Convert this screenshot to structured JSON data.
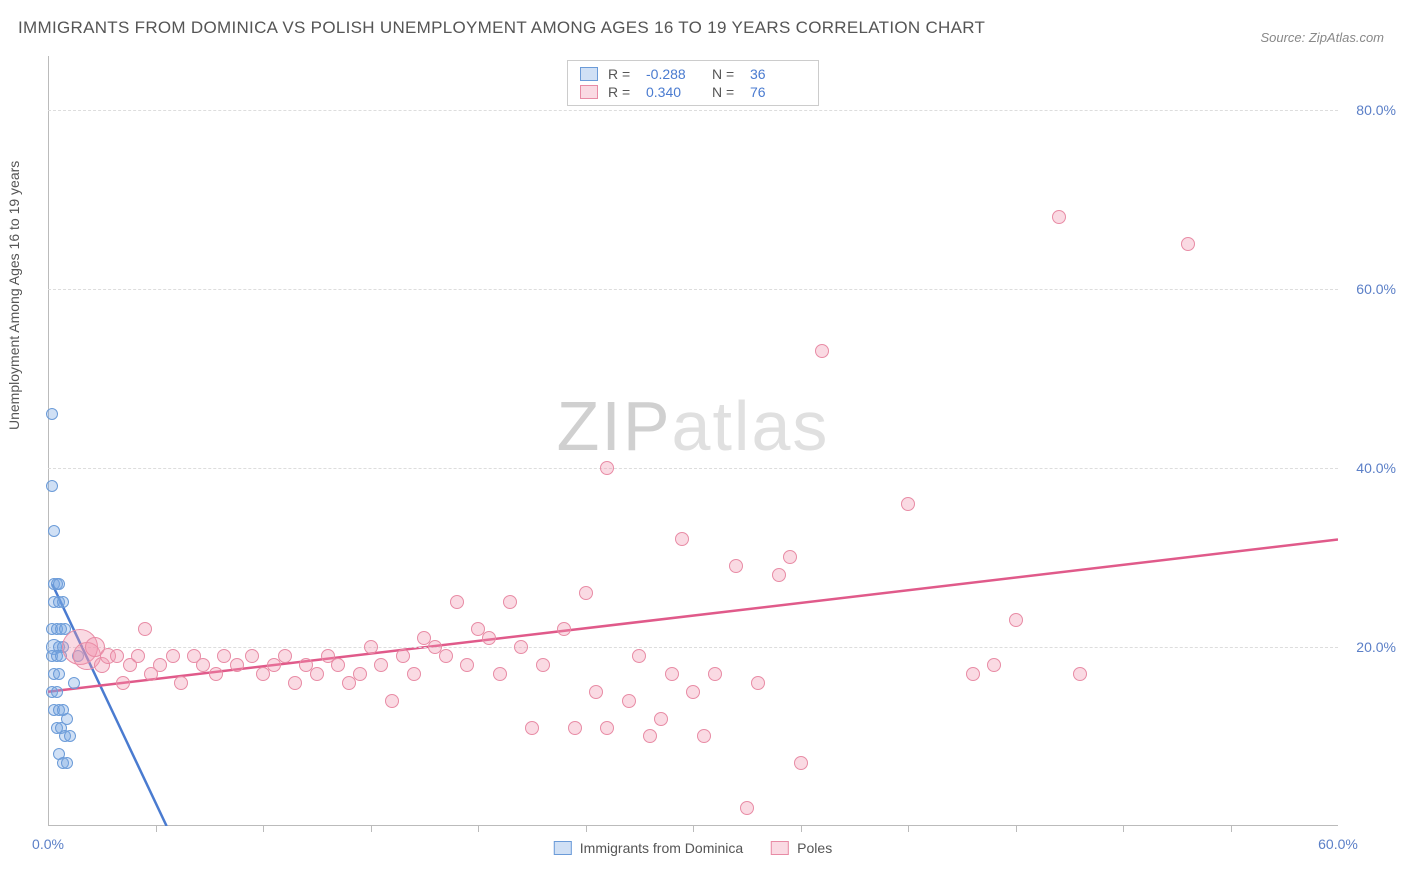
{
  "title": "IMMIGRANTS FROM DOMINICA VS POLISH UNEMPLOYMENT AMONG AGES 16 TO 19 YEARS CORRELATION CHART",
  "source": "Source: ZipAtlas.com",
  "y_axis_label": "Unemployment Among Ages 16 to 19 years",
  "watermark": {
    "part1": "ZIP",
    "part2": "atlas"
  },
  "chart": {
    "type": "scatter",
    "xlim": [
      0,
      60
    ],
    "ylim": [
      0,
      86
    ],
    "x_ticks_minor": [
      5,
      10,
      15,
      20,
      25,
      30,
      35,
      40,
      45,
      50,
      55
    ],
    "y_grid": [
      20,
      40,
      60,
      80
    ],
    "x_labels": [
      {
        "v": 0,
        "t": "0.0%"
      },
      {
        "v": 60,
        "t": "60.0%"
      }
    ],
    "y_labels": [
      {
        "v": 20,
        "t": "20.0%"
      },
      {
        "v": 40,
        "t": "40.0%"
      },
      {
        "v": 60,
        "t": "60.0%"
      },
      {
        "v": 80,
        "t": "80.0%"
      }
    ],
    "background_color": "#ffffff",
    "grid_color": "#dddddd"
  },
  "series": [
    {
      "key": "dominica",
      "label": "Immigrants from Dominica",
      "fill": "rgba(120,165,225,0.35)",
      "stroke": "#6b9bd8",
      "line_color": "#4a7bd0",
      "R": "-0.288",
      "N": "36",
      "trend": {
        "x1": 0.2,
        "y1": 27,
        "x2": 6.5,
        "y2": -5,
        "dashed_ext": true
      },
      "points": [
        {
          "x": 0.2,
          "y": 46,
          "r": 6
        },
        {
          "x": 0.2,
          "y": 38,
          "r": 6
        },
        {
          "x": 0.3,
          "y": 33,
          "r": 6
        },
        {
          "x": 0.3,
          "y": 27,
          "r": 6
        },
        {
          "x": 0.4,
          "y": 27,
          "r": 6
        },
        {
          "x": 0.5,
          "y": 27,
          "r": 6
        },
        {
          "x": 0.3,
          "y": 25,
          "r": 6
        },
        {
          "x": 0.5,
          "y": 25,
          "r": 6
        },
        {
          "x": 0.7,
          "y": 25,
          "r": 6
        },
        {
          "x": 0.2,
          "y": 22,
          "r": 6
        },
        {
          "x": 0.4,
          "y": 22,
          "r": 6
        },
        {
          "x": 0.6,
          "y": 22,
          "r": 6
        },
        {
          "x": 0.8,
          "y": 22,
          "r": 6
        },
        {
          "x": 0.3,
          "y": 20,
          "r": 8
        },
        {
          "x": 0.5,
          "y": 20,
          "r": 6
        },
        {
          "x": 0.7,
          "y": 20,
          "r": 6
        },
        {
          "x": 0.2,
          "y": 19,
          "r": 6
        },
        {
          "x": 0.4,
          "y": 19,
          "r": 6
        },
        {
          "x": 0.6,
          "y": 19,
          "r": 6
        },
        {
          "x": 0.3,
          "y": 17,
          "r": 6
        },
        {
          "x": 0.5,
          "y": 17,
          "r": 6
        },
        {
          "x": 0.2,
          "y": 15,
          "r": 6
        },
        {
          "x": 0.4,
          "y": 15,
          "r": 6
        },
        {
          "x": 0.3,
          "y": 13,
          "r": 6
        },
        {
          "x": 0.5,
          "y": 13,
          "r": 6
        },
        {
          "x": 0.7,
          "y": 13,
          "r": 6
        },
        {
          "x": 0.9,
          "y": 12,
          "r": 6
        },
        {
          "x": 0.4,
          "y": 11,
          "r": 6
        },
        {
          "x": 0.6,
          "y": 11,
          "r": 6
        },
        {
          "x": 0.8,
          "y": 10,
          "r": 6
        },
        {
          "x": 1.0,
          "y": 10,
          "r": 6
        },
        {
          "x": 0.5,
          "y": 8,
          "r": 6
        },
        {
          "x": 0.7,
          "y": 7,
          "r": 6
        },
        {
          "x": 0.9,
          "y": 7,
          "r": 6
        },
        {
          "x": 1.2,
          "y": 16,
          "r": 6
        },
        {
          "x": 1.4,
          "y": 19,
          "r": 6
        }
      ]
    },
    {
      "key": "poles",
      "label": "Poles",
      "fill": "rgba(240,150,175,0.35)",
      "stroke": "#e88ba5",
      "line_color": "#e05a8a",
      "R": "0.340",
      "N": "76",
      "trend": {
        "x1": 0,
        "y1": 15,
        "x2": 60,
        "y2": 32,
        "dashed_ext": false
      },
      "points": [
        {
          "x": 1.5,
          "y": 20,
          "r": 18
        },
        {
          "x": 1.8,
          "y": 19,
          "r": 14
        },
        {
          "x": 2.2,
          "y": 20,
          "r": 10
        },
        {
          "x": 2.5,
          "y": 18,
          "r": 8
        },
        {
          "x": 2.8,
          "y": 19,
          "r": 8
        },
        {
          "x": 3.2,
          "y": 19,
          "r": 7
        },
        {
          "x": 3.5,
          "y": 16,
          "r": 7
        },
        {
          "x": 3.8,
          "y": 18,
          "r": 7
        },
        {
          "x": 4.2,
          "y": 19,
          "r": 7
        },
        {
          "x": 4.5,
          "y": 22,
          "r": 7
        },
        {
          "x": 4.8,
          "y": 17,
          "r": 7
        },
        {
          "x": 5.2,
          "y": 18,
          "r": 7
        },
        {
          "x": 5.8,
          "y": 19,
          "r": 7
        },
        {
          "x": 6.2,
          "y": 16,
          "r": 7
        },
        {
          "x": 6.8,
          "y": 19,
          "r": 7
        },
        {
          "x": 7.2,
          "y": 18,
          "r": 7
        },
        {
          "x": 7.8,
          "y": 17,
          "r": 7
        },
        {
          "x": 8.2,
          "y": 19,
          "r": 7
        },
        {
          "x": 8.8,
          "y": 18,
          "r": 7
        },
        {
          "x": 9.5,
          "y": 19,
          "r": 7
        },
        {
          "x": 10,
          "y": 17,
          "r": 7
        },
        {
          "x": 10.5,
          "y": 18,
          "r": 7
        },
        {
          "x": 11,
          "y": 19,
          "r": 7
        },
        {
          "x": 11.5,
          "y": 16,
          "r": 7
        },
        {
          "x": 12,
          "y": 18,
          "r": 7
        },
        {
          "x": 12.5,
          "y": 17,
          "r": 7
        },
        {
          "x": 13,
          "y": 19,
          "r": 7
        },
        {
          "x": 13.5,
          "y": 18,
          "r": 7
        },
        {
          "x": 14,
          "y": 16,
          "r": 7
        },
        {
          "x": 14.5,
          "y": 17,
          "r": 7
        },
        {
          "x": 15,
          "y": 20,
          "r": 7
        },
        {
          "x": 15.5,
          "y": 18,
          "r": 7
        },
        {
          "x": 16,
          "y": 14,
          "r": 7
        },
        {
          "x": 16.5,
          "y": 19,
          "r": 7
        },
        {
          "x": 17,
          "y": 17,
          "r": 7
        },
        {
          "x": 17.5,
          "y": 21,
          "r": 7
        },
        {
          "x": 18,
          "y": 20,
          "r": 7
        },
        {
          "x": 18.5,
          "y": 19,
          "r": 7
        },
        {
          "x": 19,
          "y": 25,
          "r": 7
        },
        {
          "x": 19.5,
          "y": 18,
          "r": 7
        },
        {
          "x": 20,
          "y": 22,
          "r": 7
        },
        {
          "x": 20.5,
          "y": 21,
          "r": 7
        },
        {
          "x": 21,
          "y": 17,
          "r": 7
        },
        {
          "x": 21.5,
          "y": 25,
          "r": 7
        },
        {
          "x": 22,
          "y": 20,
          "r": 7
        },
        {
          "x": 22.5,
          "y": 11,
          "r": 7
        },
        {
          "x": 23,
          "y": 18,
          "r": 7
        },
        {
          "x": 24,
          "y": 22,
          "r": 7
        },
        {
          "x": 24.5,
          "y": 11,
          "r": 7
        },
        {
          "x": 25,
          "y": 26,
          "r": 7
        },
        {
          "x": 25.5,
          "y": 15,
          "r": 7
        },
        {
          "x": 26,
          "y": 11,
          "r": 7
        },
        {
          "x": 26,
          "y": 40,
          "r": 7
        },
        {
          "x": 27,
          "y": 14,
          "r": 7
        },
        {
          "x": 27.5,
          "y": 19,
          "r": 7
        },
        {
          "x": 28,
          "y": 10,
          "r": 7
        },
        {
          "x": 28.5,
          "y": 12,
          "r": 7
        },
        {
          "x": 29,
          "y": 17,
          "r": 7
        },
        {
          "x": 29.5,
          "y": 32,
          "r": 7
        },
        {
          "x": 30,
          "y": 15,
          "r": 7
        },
        {
          "x": 30.5,
          "y": 10,
          "r": 7
        },
        {
          "x": 31,
          "y": 17,
          "r": 7
        },
        {
          "x": 32,
          "y": 29,
          "r": 7
        },
        {
          "x": 32.5,
          "y": 2,
          "r": 7
        },
        {
          "x": 33,
          "y": 16,
          "r": 7
        },
        {
          "x": 34,
          "y": 28,
          "r": 7
        },
        {
          "x": 34.5,
          "y": 30,
          "r": 7
        },
        {
          "x": 35,
          "y": 7,
          "r": 7
        },
        {
          "x": 36,
          "y": 53,
          "r": 7
        },
        {
          "x": 40,
          "y": 36,
          "r": 7
        },
        {
          "x": 43,
          "y": 17,
          "r": 7
        },
        {
          "x": 44,
          "y": 18,
          "r": 7
        },
        {
          "x": 45,
          "y": 23,
          "r": 7
        },
        {
          "x": 47,
          "y": 68,
          "r": 7
        },
        {
          "x": 53,
          "y": 65,
          "r": 7
        },
        {
          "x": 48,
          "y": 17,
          "r": 7
        }
      ]
    }
  ],
  "legend_bottom": [
    {
      "series": 0
    },
    {
      "series": 1
    }
  ]
}
